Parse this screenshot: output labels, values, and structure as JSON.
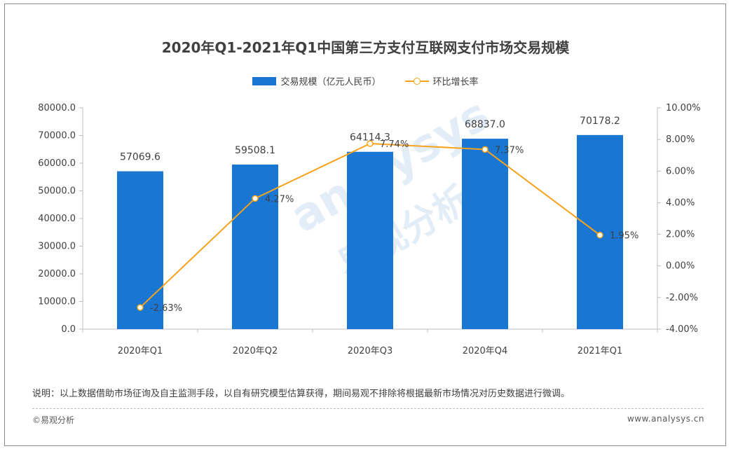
{
  "chart_data": {
    "type": "bar",
    "title": "2020年Q1-2021年Q1中国第三方支付互联网支付市场交易规模",
    "categories": [
      "2020年Q1",
      "2020年Q2",
      "2020年Q3",
      "2020年Q4",
      "2021年Q1"
    ],
    "series": [
      {
        "name": "交易规模（亿元人民币）",
        "type": "bar",
        "axis": "left",
        "color": "#1976d2",
        "values": [
          57069.6,
          59508.1,
          64114.3,
          68837.0,
          70178.2
        ],
        "labels": [
          "57069.6",
          "59508.1",
          "64114.3",
          "68837.0",
          "70178.2"
        ]
      },
      {
        "name": "环比增长率",
        "type": "line",
        "axis": "right",
        "color": "#f7a21b",
        "values": [
          -2.63,
          4.27,
          7.74,
          7.37,
          1.95
        ],
        "labels": [
          "-2.63%",
          "4.27%",
          "7.74%",
          "7.37%",
          "1.95%"
        ]
      }
    ],
    "left_axis": {
      "min": 0,
      "max": 80000,
      "ticks": [
        "0.0",
        "10000.0",
        "20000.0",
        "30000.0",
        "40000.0",
        "50000.0",
        "60000.0",
        "70000.0",
        "80000.0"
      ]
    },
    "right_axis": {
      "min": -4,
      "max": 10,
      "ticks": [
        "-4.00%",
        "-2.00%",
        "0.00%",
        "2.00%",
        "4.00%",
        "6.00%",
        "8.00%",
        "10.00%"
      ]
    },
    "grid": false,
    "legend_position": "top-center"
  },
  "note": "说明：以上数据借助市场征询及自主监测手段，以自有研究模型估算获得，期间易观不排除将根据最新市场情况对历史数据进行微调。",
  "copyright": "©易观分析",
  "website": "www.analysys.cn",
  "watermark": {
    "logo": "analysys",
    "cn": "易观分析"
  }
}
